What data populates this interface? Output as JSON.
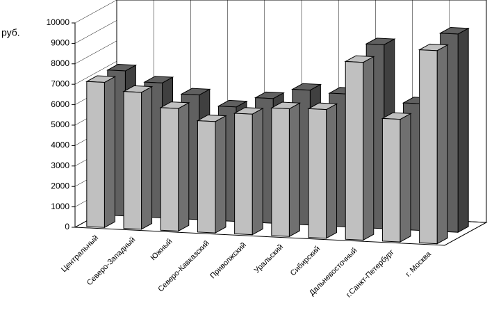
{
  "chart_data": {
    "type": "bar3d",
    "y_label": "руб.",
    "categories": [
      "Центральный",
      "Северо-Западный",
      "Южный",
      "Северо-Кавказский",
      "Приволжский",
      "Уральский",
      "Сибирский",
      "Дальневосточный",
      "г.Санкт-Петербург",
      "г. Москва"
    ],
    "series": [
      {
        "color": "#c0c0c0",
        "values": [
          7100,
          6700,
          6000,
          5450,
          5900,
          6250,
          6300,
          8700,
          6000,
          9450
        ]
      },
      {
        "color": "#606060",
        "values": [
          7100,
          6600,
          6100,
          5600,
          6100,
          6600,
          6500,
          9000,
          6200,
          9700
        ]
      }
    ],
    "ylim": [
      0,
      10000
    ],
    "yticks": [
      0,
      1000,
      2000,
      3000,
      4000,
      5000,
      6000,
      7000,
      8000,
      9000,
      10000
    ],
    "grid": true
  }
}
